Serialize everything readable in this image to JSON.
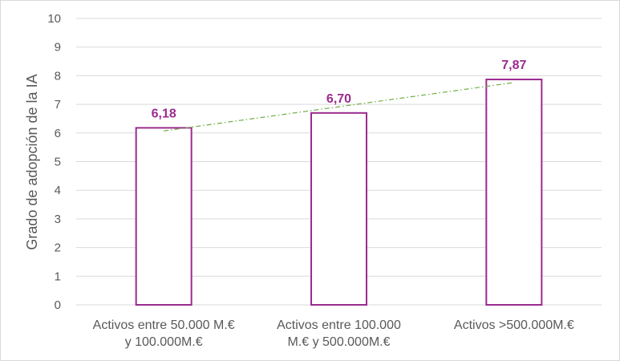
{
  "chart_data": {
    "type": "bar",
    "title": "",
    "ylabel": "Grado de adopción de la IA",
    "xlabel": "",
    "ylim": [
      0,
      10
    ],
    "yticks": [
      "0",
      "1",
      "2",
      "3",
      "4",
      "5",
      "6",
      "7",
      "8",
      "9",
      "10"
    ],
    "grid": true,
    "categories": [
      [
        "Activos entre 50.000 M.€",
        "y 100.000M.€"
      ],
      [
        "Activos entre 100.000",
        "M.€ y 500.000M.€"
      ],
      [
        "Activos >500.000M.€"
      ]
    ],
    "values": [
      6.18,
      6.7,
      7.87
    ],
    "data_labels": [
      "6,18",
      "6,70",
      "7,87"
    ],
    "trendline": {
      "type": "linear",
      "style": "dash-dot"
    },
    "colors": {
      "bar_border": "#9b2b8f",
      "bar_fill": "#ffffff",
      "data_label": "#9b2b8f",
      "trendline": "#70ad47",
      "grid": "#d9d9d9",
      "text": "#595959"
    }
  }
}
